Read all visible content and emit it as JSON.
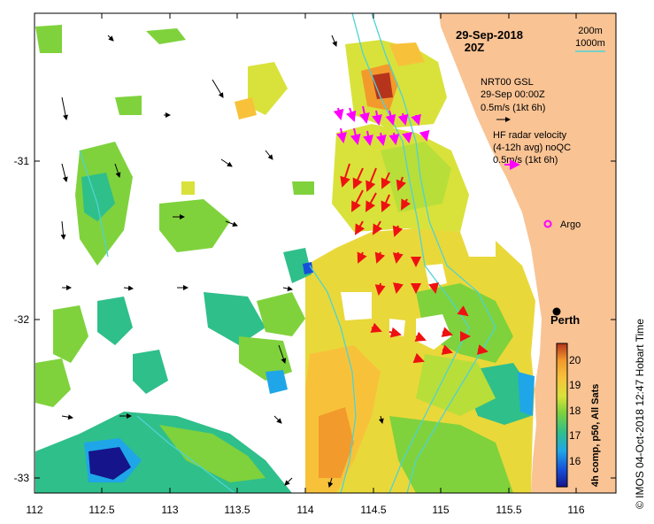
{
  "header": {
    "date": "29-Sep-2018",
    "time": "20Z"
  },
  "depth_legend": {
    "contour_1": "200m",
    "contour_2": "1000m",
    "colour": "#4fd3d3"
  },
  "model_legend": {
    "line1": "NRT00 GSL",
    "line2": "29-Sep 00:00Z",
    "line3": "0.5m/s (1kt 6h)"
  },
  "radar_legend": {
    "line1": "HF radar velocity",
    "line2": "(4-12h avg) noQC",
    "line3": "0.5m/s (1kt 6h)",
    "colour": "#ff00ff"
  },
  "argo": {
    "label": "Argo",
    "colour": "#ff00ff"
  },
  "city": {
    "label": "Perth"
  },
  "colorbar": {
    "title": "4h comp, p50, All Sats",
    "ticks": [
      "20",
      "19",
      "18",
      "17",
      "16"
    ],
    "min": 15.5,
    "max": 20.5
  },
  "axes": {
    "x_ticks": [
      "112",
      "112.5",
      "113",
      "113.5",
      "114",
      "114.5",
      "115",
      "115.5",
      "116"
    ],
    "y_ticks": [
      "-31",
      "-32",
      "-33"
    ]
  },
  "credit": "© IMOS 04-Oct-2018 12:47 Hobart Time",
  "colors": {
    "land": "#f9c394",
    "radar_vectors": "#ff00ff",
    "red_vectors": "#ee1111",
    "contours": "#4fd3d3"
  }
}
